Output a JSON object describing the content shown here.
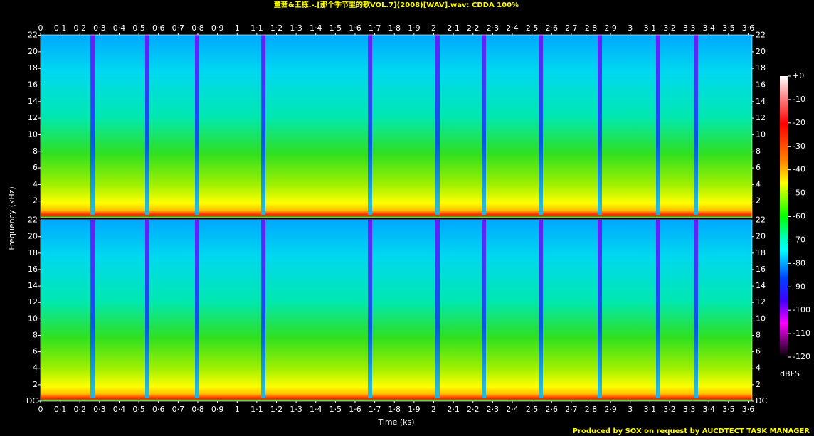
{
  "chart_data": {
    "type": "spectrogram",
    "title": "董茜&王栋.-.[那个季节里的歌VOL.7](2008)[WAV].wav: CDDA 100%",
    "x_label": "Time (ks)",
    "y_label": "Frequency (kHz)",
    "xlim": [
      0,
      3.62
    ],
    "xticks": [
      0,
      {
        "value": 0.1,
        "label": "0·1"
      },
      {
        "value": 0.2,
        "label": "0·2"
      },
      {
        "value": 0.3,
        "label": "0·3"
      },
      {
        "value": 0.4,
        "label": "0·4"
      },
      {
        "value": 0.5,
        "label": "0·5"
      },
      {
        "value": 0.6,
        "label": "0·6"
      },
      {
        "value": 0.7,
        "label": "0·7"
      },
      {
        "value": 0.8,
        "label": "0·8"
      },
      {
        "value": 0.9,
        "label": "0·9"
      },
      1,
      {
        "value": 1.1,
        "label": "1·1"
      },
      {
        "value": 1.2,
        "label": "1·2"
      },
      {
        "value": 1.3,
        "label": "1·3"
      },
      {
        "value": 1.4,
        "label": "1·4"
      },
      {
        "value": 1.5,
        "label": "1·5"
      },
      {
        "value": 1.6,
        "label": "1·6"
      },
      {
        "value": 1.7,
        "label": "1·7"
      },
      {
        "value": 1.8,
        "label": "1·8"
      },
      {
        "value": 1.9,
        "label": "1·9"
      },
      2,
      {
        "value": 2.1,
        "label": "2·1"
      },
      {
        "value": 2.2,
        "label": "2·2"
      },
      {
        "value": 2.3,
        "label": "2·3"
      },
      {
        "value": 2.4,
        "label": "2·4"
      },
      {
        "value": 2.5,
        "label": "2·5"
      },
      {
        "value": 2.6,
        "label": "2·6"
      },
      {
        "value": 2.7,
        "label": "2·7"
      },
      {
        "value": 2.8,
        "label": "2·8"
      },
      {
        "value": 2.9,
        "label": "2·9"
      },
      3,
      {
        "value": 3.1,
        "label": "3·1"
      },
      {
        "value": 3.2,
        "label": "3·2"
      },
      {
        "value": 3.3,
        "label": "3·3"
      },
      {
        "value": 3.4,
        "label": "3·4"
      },
      {
        "value": 3.5,
        "label": "3·5"
      },
      {
        "value": 3.6,
        "label": "3·6"
      }
    ],
    "ylim": [
      0,
      22.05
    ],
    "yticks": [
      {
        "value": 0,
        "label": "DC"
      },
      2,
      4,
      6,
      8,
      10,
      12,
      14,
      16,
      18,
      20,
      22
    ],
    "colorbar": {
      "label": "dBFS",
      "lim": [
        -120,
        0
      ],
      "ticks": [
        {
          "value": 0,
          "label": "+0"
        },
        -10,
        -20,
        -30,
        -40,
        -50,
        -60,
        -70,
        -80,
        -90,
        -100,
        -110,
        -120
      ]
    },
    "footer": "Produced by SOX on request by AUCDTECT TASK MANAGER"
  }
}
